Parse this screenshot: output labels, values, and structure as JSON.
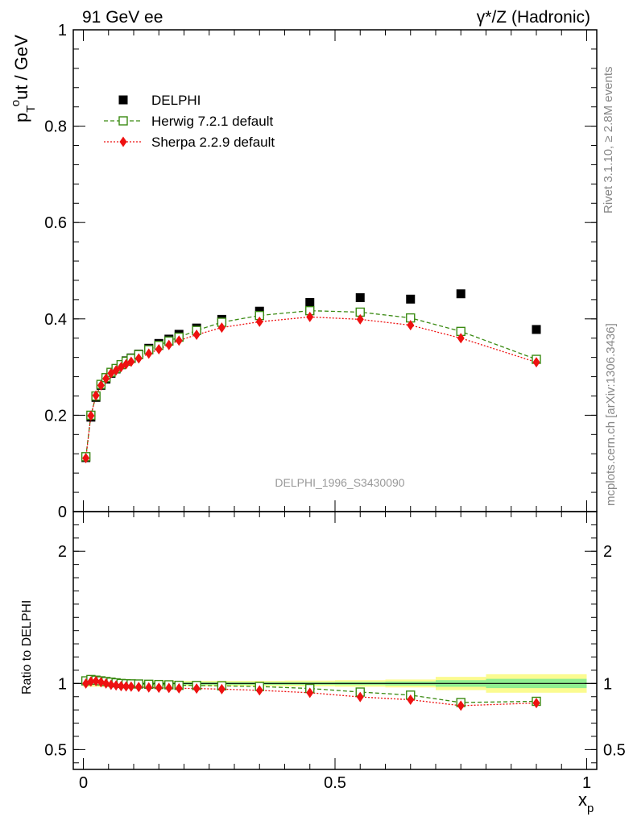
{
  "header": {
    "left": "91 GeV ee",
    "right": "γ*/Z (Hadronic)"
  },
  "side_text": {
    "rivet": "Rivet 3.1.10, ≥ 2.8M events",
    "source": "mcplots.cern.ch [arXiv:1306.3436]"
  },
  "watermark": "DELPHI_1996_S3430090",
  "colors": {
    "data": "#000000",
    "herwig": "#3a8a12",
    "sherpa": "#ee1111",
    "band_outer": "#fbfb90",
    "band_inner": "#90ee90"
  },
  "chart_data": [
    {
      "type": "scatter",
      "panel": "main",
      "ylabel_parts": [
        "p",
        "T",
        "o",
        "ut / GeV"
      ],
      "xlim": [
        -0.02,
        1.02
      ],
      "ylim": [
        0,
        1
      ],
      "yticks": [
        {
          "v": 0,
          "label": "0"
        },
        {
          "v": 0.2,
          "label": "0.2"
        },
        {
          "v": 0.4,
          "label": "0.4"
        },
        {
          "v": 0.6,
          "label": "0.6"
        },
        {
          "v": 0.8,
          "label": "0.8"
        },
        {
          "v": 1,
          "label": "1"
        }
      ],
      "legend": {
        "placement": "top-left",
        "entries": [
          {
            "key": "data",
            "label": "DELPHI"
          },
          {
            "key": "herwig",
            "label": "Herwig 7.2.1 default"
          },
          {
            "key": "sherpa",
            "label": "Sherpa 2.2.9 default"
          }
        ]
      },
      "x": [
        0.005,
        0.015,
        0.025,
        0.035,
        0.045,
        0.055,
        0.065,
        0.075,
        0.085,
        0.095,
        0.11,
        0.13,
        0.15,
        0.17,
        0.19,
        0.225,
        0.275,
        0.35,
        0.45,
        0.55,
        0.65,
        0.75,
        0.9
      ],
      "series": [
        {
          "key": "data",
          "name": "DELPHI",
          "values": [
            0.112,
            0.196,
            0.237,
            0.262,
            0.275,
            0.287,
            0.296,
            0.305,
            0.313,
            0.319,
            0.327,
            0.339,
            0.349,
            0.358,
            0.368,
            0.381,
            0.399,
            0.416,
            0.434,
            0.444,
            0.441,
            0.452,
            0.378
          ]
        },
        {
          "key": "herwig",
          "name": "Herwig 7.2.1 default",
          "values": [
            0.114,
            0.2,
            0.24,
            0.264,
            0.278,
            0.289,
            0.297,
            0.305,
            0.312,
            0.318,
            0.326,
            0.336,
            0.345,
            0.354,
            0.362,
            0.376,
            0.393,
            0.407,
            0.417,
            0.414,
            0.402,
            0.374,
            0.316
          ]
        },
        {
          "key": "sherpa",
          "name": "Sherpa 2.2.9 default",
          "values": [
            0.111,
            0.199,
            0.241,
            0.262,
            0.276,
            0.287,
            0.293,
            0.3,
            0.306,
            0.311,
            0.318,
            0.328,
            0.337,
            0.346,
            0.355,
            0.367,
            0.382,
            0.394,
            0.404,
            0.399,
            0.387,
            0.36,
            0.31
          ]
        }
      ]
    },
    {
      "type": "line",
      "panel": "ratio",
      "ylabel": "Ratio to DELPHI",
      "xlabel_parts": [
        "x",
        "p"
      ],
      "xlim": [
        -0.02,
        1.02
      ],
      "ylim": [
        0.35,
        2.3
      ],
      "xticks": [
        {
          "v": 0,
          "label": "0"
        },
        {
          "v": 0.5,
          "label": "0.5"
        },
        {
          "v": 1,
          "label": "1"
        }
      ],
      "yticks": [
        {
          "v": 0.5,
          "label": "0.5"
        },
        {
          "v": 1,
          "label": "1"
        },
        {
          "v": 2,
          "label": "2"
        }
      ],
      "bands": [
        {
          "x0": 0,
          "x1": 0.1,
          "outer": 0.025,
          "inner": 0.012
        },
        {
          "x0": 0.1,
          "x1": 0.2,
          "outer": 0.02,
          "inner": 0.01
        },
        {
          "x0": 0.2,
          "x1": 0.3,
          "outer": 0.02,
          "inner": 0.01
        },
        {
          "x0": 0.3,
          "x1": 0.4,
          "outer": 0.02,
          "inner": 0.01
        },
        {
          "x0": 0.4,
          "x1": 0.5,
          "outer": 0.022,
          "inner": 0.01
        },
        {
          "x0": 0.5,
          "x1": 0.6,
          "outer": 0.025,
          "inner": 0.012
        },
        {
          "x0": 0.6,
          "x1": 0.7,
          "outer": 0.03,
          "inner": 0.015
        },
        {
          "x0": 0.7,
          "x1": 0.8,
          "outer": 0.05,
          "inner": 0.025
        },
        {
          "x0": 0.8,
          "x1": 1.0,
          "outer": 0.07,
          "inner": 0.035
        }
      ],
      "x": [
        0.005,
        0.015,
        0.025,
        0.035,
        0.045,
        0.055,
        0.065,
        0.075,
        0.085,
        0.095,
        0.11,
        0.13,
        0.15,
        0.17,
        0.19,
        0.225,
        0.275,
        0.35,
        0.45,
        0.55,
        0.65,
        0.75,
        0.9
      ],
      "series": [
        {
          "key": "herwig",
          "name": "Herwig 7.2.1 default",
          "values": [
            1.02,
            1.03,
            1.025,
            1.02,
            1.015,
            1.01,
            1.005,
            1.0,
            0.998,
            0.997,
            0.996,
            0.994,
            0.992,
            0.99,
            0.986,
            0.985,
            0.982,
            0.977,
            0.962,
            0.935,
            0.912,
            0.856,
            0.865
          ]
        },
        {
          "key": "sherpa",
          "name": "Sherpa 2.2.9 default",
          "values": [
            1.0,
            1.015,
            1.018,
            1.01,
            1.0,
            0.99,
            0.985,
            0.98,
            0.978,
            0.976,
            0.973,
            0.97,
            0.968,
            0.966,
            0.963,
            0.962,
            0.957,
            0.948,
            0.93,
            0.898,
            0.877,
            0.832,
            0.852
          ]
        }
      ]
    }
  ]
}
